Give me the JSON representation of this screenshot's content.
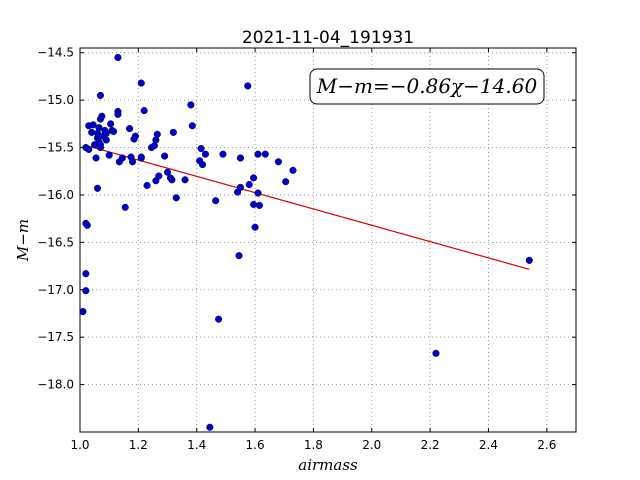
{
  "chart_data": {
    "type": "scatter",
    "title": "2021-11-04_191931",
    "xlabel": "airmass",
    "ylabel": "M−m",
    "xlim": [
      1.0,
      2.7
    ],
    "ylim": [
      -18.5,
      -14.45
    ],
    "y_inverted": true,
    "grid": true,
    "x_ticks": [
      1.0,
      1.2,
      1.4,
      1.6,
      1.8,
      2.0,
      2.2,
      2.4,
      2.6
    ],
    "x_tick_labels": [
      "1.0",
      "1.2",
      "1.4",
      "1.6",
      "1.8",
      "2.0",
      "2.2",
      "2.4",
      "2.6"
    ],
    "y_ticks": [
      -14.5,
      -15.0,
      -15.5,
      -16.0,
      -16.5,
      -17.0,
      -17.5,
      -18.0
    ],
    "y_tick_labels": [
      "−14.5",
      "−15.0",
      "−15.5",
      "−16.0",
      "−16.5",
      "−17.0",
      "−17.5",
      "−18.0"
    ],
    "fit_annotation": "M−m=−0.86χ−14.60",
    "fit_line": {
      "slope": -0.86,
      "intercept": -14.6,
      "x_range": [
        1.02,
        2.54
      ]
    },
    "point_color": "#0000cc",
    "line_color": "#dd0000",
    "points": [
      [
        1.01,
        -17.23
      ],
      [
        1.02,
        -16.83
      ],
      [
        1.02,
        -17.01
      ],
      [
        1.02,
        -16.3
      ],
      [
        1.025,
        -16.32
      ],
      [
        1.02,
        -15.5
      ],
      [
        1.03,
        -15.52
      ],
      [
        1.03,
        -15.27
      ],
      [
        1.04,
        -15.34
      ],
      [
        1.045,
        -15.26
      ],
      [
        1.05,
        -15.47
      ],
      [
        1.055,
        -15.61
      ],
      [
        1.06,
        -15.4
      ],
      [
        1.06,
        -15.35
      ],
      [
        1.06,
        -15.93
      ],
      [
        1.065,
        -15.29
      ],
      [
        1.065,
        -15.44
      ],
      [
        1.07,
        -15.2
      ],
      [
        1.07,
        -15.5
      ],
      [
        1.07,
        -15.47
      ],
      [
        1.07,
        -14.95
      ],
      [
        1.075,
        -15.17
      ],
      [
        1.08,
        -15.38
      ],
      [
        1.085,
        -15.32
      ],
      [
        1.09,
        -15.35
      ],
      [
        1.09,
        -15.42
      ],
      [
        1.1,
        -15.58
      ],
      [
        1.105,
        -15.25
      ],
      [
        1.11,
        -15.32
      ],
      [
        1.115,
        -15.33
      ],
      [
        1.13,
        -15.12
      ],
      [
        1.13,
        -15.15
      ],
      [
        1.13,
        -14.55
      ],
      [
        1.135,
        -15.65
      ],
      [
        1.145,
        -15.61
      ],
      [
        1.155,
        -16.13
      ],
      [
        1.17,
        -15.3
      ],
      [
        1.175,
        -15.6
      ],
      [
        1.18,
        -15.65
      ],
      [
        1.185,
        -15.41
      ],
      [
        1.19,
        -15.38
      ],
      [
        1.21,
        -15.6
      ],
      [
        1.21,
        -15.61
      ],
      [
        1.21,
        -14.82
      ],
      [
        1.22,
        -15.11
      ],
      [
        1.23,
        -15.9
      ],
      [
        1.245,
        -15.5
      ],
      [
        1.255,
        -15.48
      ],
      [
        1.26,
        -15.42
      ],
      [
        1.26,
        -15.85
      ],
      [
        1.265,
        -15.36
      ],
      [
        1.27,
        -15.8
      ],
      [
        1.29,
        -15.59
      ],
      [
        1.3,
        -15.76
      ],
      [
        1.31,
        -15.82
      ],
      [
        1.315,
        -15.84
      ],
      [
        1.32,
        -15.34
      ],
      [
        1.33,
        -16.03
      ],
      [
        1.36,
        -15.84
      ],
      [
        1.38,
        -15.05
      ],
      [
        1.385,
        -15.27
      ],
      [
        1.41,
        -15.64
      ],
      [
        1.415,
        -15.51
      ],
      [
        1.42,
        -15.68
      ],
      [
        1.43,
        -15.57
      ],
      [
        1.445,
        -18.45
      ],
      [
        1.465,
        -16.06
      ],
      [
        1.475,
        -17.31
      ],
      [
        1.49,
        -15.57
      ],
      [
        1.54,
        -15.97
      ],
      [
        1.545,
        -16.64
      ],
      [
        1.55,
        -15.92
      ],
      [
        1.55,
        -15.61
      ],
      [
        1.575,
        -14.85
      ],
      [
        1.58,
        -15.89
      ],
      [
        1.595,
        -15.82
      ],
      [
        1.595,
        -16.1
      ],
      [
        1.6,
        -16.34
      ],
      [
        1.61,
        -15.98
      ],
      [
        1.61,
        -15.57
      ],
      [
        1.615,
        -16.11
      ],
      [
        1.635,
        -15.57
      ],
      [
        1.68,
        -15.65
      ],
      [
        1.705,
        -15.86
      ],
      [
        1.73,
        -15.74
      ],
      [
        2.22,
        -17.67
      ],
      [
        2.54,
        -16.69
      ]
    ]
  }
}
